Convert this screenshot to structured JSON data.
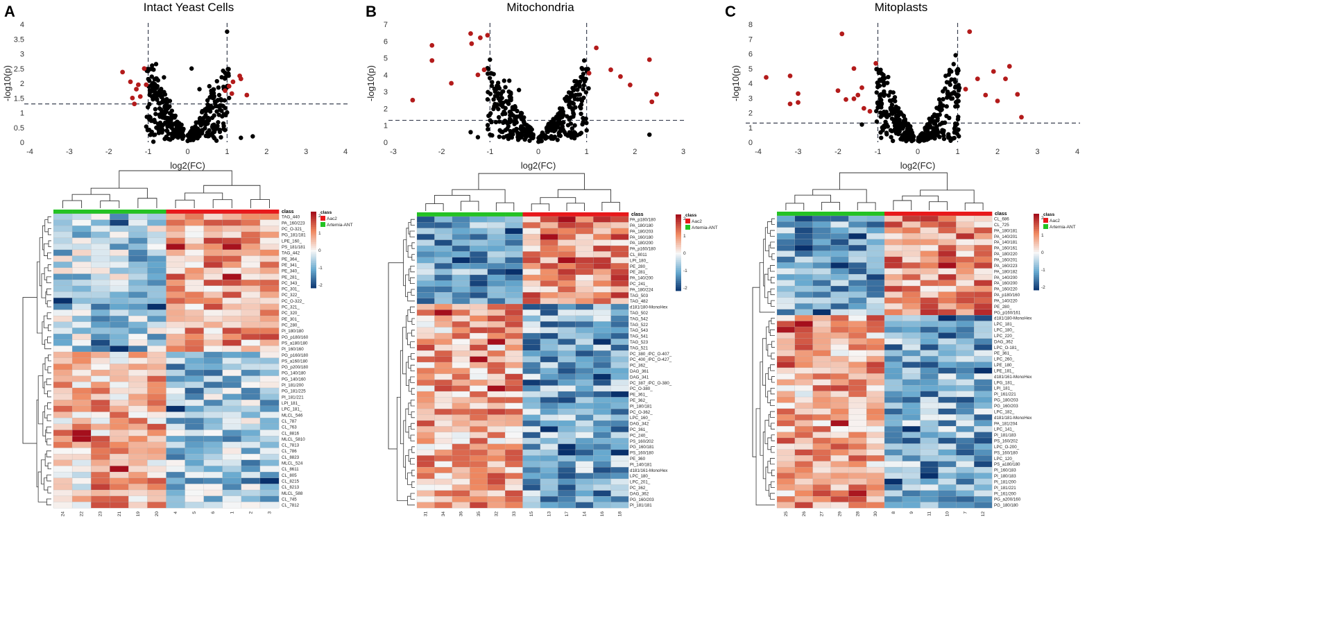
{
  "colors": {
    "sig": "#b31b1b",
    "nonsig": "#000000",
    "aac2": "#e8191b",
    "ant": "#24c224",
    "heat_high": "#a50f1c",
    "heat_mid": "#f7f7f7",
    "heat_low": "#08306b"
  },
  "legend": {
    "class_header": "class",
    "classes": [
      "Aac2",
      "Artemia-ANT"
    ],
    "scale_ticks": [
      "2",
      "1",
      "0",
      "-1",
      "-2"
    ],
    "scale_values": [
      2,
      1,
      0,
      -1,
      -2
    ]
  },
  "chart_data": [
    {
      "panel": "A",
      "type": "scatter",
      "title": "Intact Yeast Cells",
      "xlabel": "log2(FC)",
      "ylabel": "-log10(p)",
      "xlim": [
        -4,
        4
      ],
      "ylim": [
        0,
        4
      ],
      "xticks": [
        -4,
        -3,
        -2,
        -1,
        0,
        1,
        2,
        3,
        4
      ],
      "yticks": [
        0,
        0.5,
        1,
        1.5,
        2,
        2.5,
        3,
        3.5,
        4
      ],
      "thresholds": {
        "x": [
          -1,
          1
        ],
        "y": 1.3
      },
      "points_sig": [
        [
          -1.65,
          2.38
        ],
        [
          -1.45,
          2.05
        ],
        [
          -1.3,
          1.8
        ],
        [
          -1.2,
          1.55
        ],
        [
          -1.35,
          1.3
        ],
        [
          -1.1,
          2.5
        ],
        [
          -1.05,
          1.95
        ],
        [
          -1.25,
          1.95
        ],
        [
          -1.4,
          1.5
        ],
        [
          1.05,
          1.9
        ],
        [
          1.15,
          2.05
        ],
        [
          1.32,
          2.25
        ],
        [
          1.35,
          2.15
        ],
        [
          1.5,
          1.6
        ],
        [
          1.12,
          1.65
        ],
        [
          0.95,
          1.75
        ]
      ],
      "points_ns": [
        [
          -0.9,
          2.6
        ],
        [
          -0.8,
          2.65
        ],
        [
          -0.6,
          2.2
        ],
        [
          -0.75,
          2.1
        ],
        [
          0.1,
          2.5
        ],
        [
          0.3,
          1.8
        ],
        [
          0.55,
          1.9
        ],
        [
          0.8,
          1.6
        ],
        [
          1.0,
          3.75
        ],
        [
          1.05,
          1.5
        ],
        [
          1.35,
          0.15
        ],
        [
          1.65,
          0.2
        ],
        [
          -0.45,
          1.4
        ],
        [
          0.7,
          1.3
        ],
        [
          -0.95,
          1.7
        ]
      ],
      "heatmap": {
        "samples": [
          "24",
          "22",
          "23",
          "21",
          "19",
          "20",
          "4",
          "5",
          "6",
          "1",
          "2",
          "3"
        ],
        "class_groups": [
          6,
          6
        ],
        "seed": 11,
        "split_row": 23,
        "rows": [
          "TAG_440",
          "PA_160/223",
          "PC_O-321_",
          "PG_181/181",
          "LPE_160_",
          "PS_181/181",
          "TAG_442",
          "PE_364_",
          "PE_341_",
          "PE_340_",
          "PE_281_",
          "PC_343_",
          "PC_301_",
          "PC_322_",
          "PC_O-322_",
          "PC_321_",
          "PC_320_",
          "PE_301_",
          "PC_280_",
          "PI_180/180",
          "PG_p180/160",
          "PS_a180/180",
          "PI_160/160",
          "PG_p160/180",
          "PS_a160/180",
          "PG_p200/180",
          "PG_140/180",
          "PG_140/160",
          "PI_181/200",
          "PG_181/225",
          "PI_181/221",
          "LPI_181_",
          "LPC_181_",
          "MLCL_546",
          "CL_787",
          "CL_763",
          "CL_8816",
          "MLCL_5810",
          "CL_7813",
          "CL_786",
          "CL_8823",
          "MLCL_524",
          "CL_8611",
          "CL_805",
          "CL_8215",
          "CL_8213",
          "MLCL_588",
          "CL_745",
          "CL_7812"
        ]
      }
    },
    {
      "panel": "B",
      "type": "scatter",
      "title": "Mitochondria",
      "xlabel": "log2(FC)",
      "ylabel": "-log10(p)",
      "xlim": [
        -3,
        3
      ],
      "ylim": [
        0,
        7
      ],
      "xticks": [
        -3,
        -2,
        -1,
        0,
        1,
        2,
        3
      ],
      "yticks": [
        0,
        1,
        2,
        3,
        4,
        5,
        6,
        7
      ],
      "thresholds": {
        "x": [
          -1,
          1
        ],
        "y": 1.3
      },
      "points_sig": [
        [
          -2.6,
          2.5
        ],
        [
          -2.2,
          5.75
        ],
        [
          -2.2,
          4.85
        ],
        [
          -1.8,
          3.5
        ],
        [
          -1.4,
          6.45
        ],
        [
          -1.2,
          6.2
        ],
        [
          -1.38,
          5.85
        ],
        [
          -1.05,
          6.35
        ],
        [
          -1.25,
          4.0
        ],
        [
          -1.12,
          4.3
        ],
        [
          1.2,
          5.6
        ],
        [
          1.9,
          3.4
        ],
        [
          2.3,
          4.9
        ],
        [
          2.35,
          2.4
        ],
        [
          2.45,
          2.85
        ],
        [
          1.05,
          4.1
        ],
        [
          1.5,
          4.3
        ],
        [
          1.7,
          3.9
        ]
      ],
      "points_ns": [
        [
          -1.0,
          4.9
        ],
        [
          -1.05,
          4.4
        ],
        [
          -1.4,
          0.6
        ],
        [
          -1.25,
          0.3
        ],
        [
          2.3,
          0.45
        ],
        [
          0.95,
          4.85
        ],
        [
          0.9,
          4.4
        ],
        [
          -0.6,
          3.65
        ],
        [
          -0.4,
          3.1
        ]
      ],
      "heatmap": {
        "samples": [
          "31",
          "34",
          "36",
          "35",
          "32",
          "33",
          "15",
          "13",
          "17",
          "14",
          "16",
          "18"
        ],
        "class_groups": [
          6,
          6
        ],
        "seed": 23,
        "split_row": 15,
        "rows": [
          "PA_p180/180",
          "PA_180/180",
          "PA_180/203",
          "PA_160/180",
          "PA_180/200",
          "PA_p160/180",
          "CL_8011",
          "LPI_180_",
          "PE_280_",
          "PE_281_",
          "PA_140/200",
          "PC_241_",
          "PA_180/224",
          "TAG_503",
          "TAG_482",
          "d181/180-MonoHex",
          "TAG_502",
          "TAG_542",
          "TAG_522",
          "TAG_543",
          "TAG_541",
          "TAG_523",
          "TAG_521",
          "PC_380_/PC_O-407_",
          "PC_400_/PC_O-427_",
          "PC_362_",
          "DAG_361",
          "DAG_341",
          "PC_387_/PC_O-380_",
          "PC_O-380_",
          "PE_361_",
          "PE_362_",
          "PI_180/181",
          "PC_O-362_",
          "LPC_160_",
          "DAG_342",
          "PC_361_",
          "PC_240_",
          "PS_160/202",
          "PG_160/181",
          "PS_160/180",
          "PE_360",
          "PI_140/181",
          "d181/161-MonoHex",
          "LPC_180_",
          "LPC_201_",
          "PC_362_",
          "DAG_362",
          "PG_160/203",
          "PI_181/181"
        ]
      }
    },
    {
      "panel": "C",
      "type": "scatter",
      "title": "Mitoplasts",
      "xlabel": "log2(FC)",
      "ylabel": "-log10(p)",
      "xlim": [
        -4,
        4
      ],
      "ylim": [
        0,
        8
      ],
      "xticks": [
        -4,
        -3,
        -2,
        -1,
        0,
        1,
        2,
        3,
        4
      ],
      "yticks": [
        0,
        1,
        2,
        3,
        4,
        5,
        6,
        7,
        8
      ],
      "thresholds": {
        "x": [
          -1,
          1
        ],
        "y": 1.3
      },
      "points_sig": [
        [
          -3.8,
          4.4
        ],
        [
          -3.2,
          4.5
        ],
        [
          -3.2,
          2.6
        ],
        [
          -3.0,
          3.3
        ],
        [
          -3.0,
          2.7
        ],
        [
          -1.9,
          7.35
        ],
        [
          -2.0,
          3.5
        ],
        [
          -1.8,
          2.9
        ],
        [
          -1.6,
          5.0
        ],
        [
          -1.4,
          3.7
        ],
        [
          -1.5,
          3.2
        ],
        [
          -1.35,
          2.3
        ],
        [
          -1.05,
          5.35
        ],
        [
          -1.2,
          2.1
        ],
        [
          -1.6,
          2.95
        ],
        [
          1.3,
          7.5
        ],
        [
          1.9,
          4.8
        ],
        [
          2.3,
          5.15
        ],
        [
          2.5,
          3.25
        ],
        [
          2.6,
          1.7
        ],
        [
          1.2,
          3.6
        ],
        [
          1.5,
          4.3
        ],
        [
          2.2,
          4.3
        ],
        [
          1.7,
          3.2
        ],
        [
          2.0,
          2.8
        ]
      ],
      "points_ns": [
        [
          -0.95,
          3.15
        ],
        [
          -1.0,
          2.35
        ],
        [
          -1.4,
          1.2
        ],
        [
          0.95,
          5.9
        ],
        [
          0.9,
          5.3
        ],
        [
          0.8,
          4.9
        ],
        [
          0.7,
          4.5
        ]
      ],
      "heatmap": {
        "samples": [
          "25",
          "26",
          "27",
          "29",
          "28",
          "30",
          "8",
          "9",
          "11",
          "10",
          "7",
          "12"
        ],
        "class_groups": [
          6,
          6
        ],
        "seed": 37,
        "split_row": 17,
        "rows": [
          "CL_686",
          "CL_725",
          "PA_180/181",
          "PA_140/201",
          "PA_140/181",
          "PA_160/161",
          "PA_180/220",
          "PA_160/201",
          "PA_160/223",
          "PA_180/182",
          "PA_140/200",
          "PA_160/200",
          "PA_160/220",
          "PA_p180/160",
          "PA_140/220",
          "PE_280_",
          "PG_p160/161",
          "d181/180-MonoHex",
          "LPC_181_",
          "LPC_180_",
          "LPC_220_",
          "DAG_362",
          "LPC_O-181_",
          "PE_361_",
          "LPC_260_",
          "LPE_180_",
          "LPE_181_",
          "d181/161-MonoHex",
          "LPG_181_",
          "LPI_181_",
          "PI_161/221",
          "PG_180/203",
          "PG_160/203",
          "LPC_182_",
          "d181/181-MonoHex",
          "PA_181/204",
          "LPC_141_",
          "PI_181/183",
          "PS_160/202",
          "LPC_O-200_",
          "PS_160/180",
          "LPC_120_",
          "PS_a180/180",
          "PI_160/183",
          "PI_180/183",
          "PI_181/200",
          "PI_181/221",
          "PI_161/200",
          "PG_a200/160",
          "PG_180/180"
        ]
      }
    }
  ]
}
